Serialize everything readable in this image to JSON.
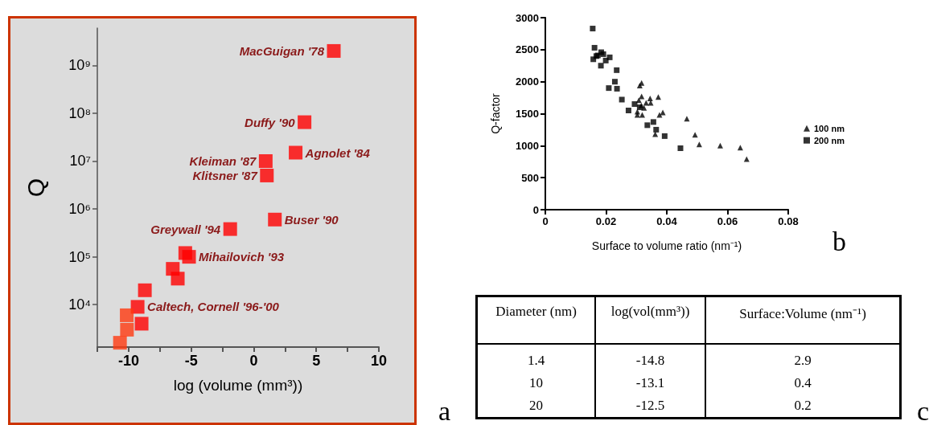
{
  "chart_data": [
    {
      "type": "scatter",
      "xlabel": "log (volume (mm³))",
      "ylabel": "Q",
      "log": "y",
      "grid": false,
      "legend": false,
      "xlim": [
        -12.5,
        10
      ],
      "xticks": [
        {
          "value": -12.5,
          "label": null
        },
        -10,
        {
          "value": -7.5,
          "label": null
        },
        -5,
        {
          "value": -2.5,
          "label": null
        },
        0,
        {
          "value": 2.5,
          "label": null
        },
        5,
        {
          "value": 7.5,
          "label": null
        },
        10
      ],
      "ylim": [
        1300,
        6000000000
      ],
      "yticks": [
        {
          "value": 10000,
          "label": "10⁴"
        },
        {
          "value": 100000,
          "label": "10⁵"
        },
        {
          "value": 1000000,
          "label": "10⁶"
        },
        {
          "value": 10000000,
          "label": "10⁷"
        },
        {
          "value": 100000000,
          "label": "10⁸"
        },
        {
          "value": 1000000000,
          "label": "10⁹"
        }
      ],
      "series": [
        {
          "color": "#ff0000",
          "marker": "square",
          "x": [
            6.4,
            4.06,
            3.35,
            0.96,
            1.05,
            1.69,
            -1.88,
            -5.47,
            -5.17,
            -6.47,
            -6.07,
            -8.7,
            -9.28,
            -8.96
          ],
          "values": [
            2000000000,
            65000000,
            15000000,
            10000000,
            5000000,
            600000,
            380000,
            120000,
            100000,
            56000,
            35000,
            20000,
            9000,
            4000
          ]
        },
        {
          "color": "#ff3a10",
          "marker": "square",
          "x": [
            -10.15,
            -10.13,
            -10.69
          ],
          "values": [
            6000,
            3000,
            1600
          ]
        }
      ],
      "annotations": [
        {
          "text": "MacGuigan '78",
          "x": 6.4,
          "y": 2000000000
        },
        {
          "text": "Duffy '90",
          "x": 4.06,
          "y": 65000000
        },
        {
          "text": "Agnolet '84",
          "x": 3.35,
          "y": 15000000
        },
        {
          "text": "Kleiman '87",
          "x": 0.96,
          "y": 10000000
        },
        {
          "text": "Klitsner '87",
          "x": 1.05,
          "y": 5000000
        },
        {
          "text": "Buser '90",
          "x": 1.69,
          "y": 600000
        },
        {
          "text": "Greywall '94",
          "x": -1.88,
          "y": 380000
        },
        {
          "text": "Mihailovich '93",
          "x": -5.17,
          "y": 100000
        },
        {
          "text": "Caltech, Cornell '96-'00",
          "x": -9.28,
          "y": 9000
        },
        "a"
      ]
    },
    {
      "type": "scatter",
      "xlabel": "Surface to volume ratio (nm⁻¹)",
      "ylabel": "Q-factor",
      "grid": false,
      "legend": "right",
      "xlim": [
        0,
        0.08
      ],
      "xticks": [
        0,
        0.02,
        0.04,
        0.06,
        0.08
      ],
      "ylim": [
        0,
        3000
      ],
      "yticks": [
        0,
        500,
        1000,
        1500,
        2000,
        2500,
        3000
      ],
      "series": [
        {
          "name": "100 nm",
          "color": "#000000",
          "marker": "triangle",
          "x": [
            0.0311,
            0.0317,
            0.0317,
            0.0308,
            0.0332,
            0.0345,
            0.0347,
            0.0372,
            0.0325,
            0.0316,
            0.0303,
            0.0303,
            0.0319,
            0.0376,
            0.0387,
            0.0362,
            0.0466,
            0.0493,
            0.0507,
            0.0576,
            0.0642,
            0.0663
          ],
          "values": [
            1940,
            1980,
            1770,
            1710,
            1670,
            1740,
            1670,
            1760,
            1590,
            1630,
            1480,
            1530,
            1480,
            1480,
            1520,
            1180,
            1420,
            1170,
            1020,
            1000,
            970,
            790
          ]
        },
        {
          "name": "200 nm",
          "color": "#000000",
          "marker": "square",
          "x": [
            0.0156,
            0.0162,
            0.0158,
            0.0168,
            0.0173,
            0.0184,
            0.0191,
            0.0199,
            0.0183,
            0.0212,
            0.0235,
            0.0229,
            0.0209,
            0.0236,
            0.0252,
            0.0274,
            0.0294,
            0.0311,
            0.0336,
            0.0356,
            0.0365,
            0.0393,
            0.0445
          ],
          "values": [
            2830,
            2530,
            2350,
            2400,
            2410,
            2460,
            2430,
            2330,
            2250,
            2380,
            2180,
            2000,
            1900,
            1890,
            1720,
            1550,
            1650,
            1600,
            1320,
            1370,
            1250,
            1150,
            960
          ]
        }
      ],
      "annotations": [
        "b"
      ]
    },
    {
      "type": "other",
      "categories": [
        "Diameter (nm)",
        "log(vol(mm³))",
        "Surface:Volume (nm⁻¹)"
      ],
      "cell_labels": [
        [
          "1.4",
          "-14.8",
          "2.9"
        ],
        [
          "10",
          "-13.1",
          "0.4"
        ],
        [
          "20",
          "-12.5",
          "0.2"
        ]
      ],
      "annotations": [
        "c"
      ]
    }
  ]
}
